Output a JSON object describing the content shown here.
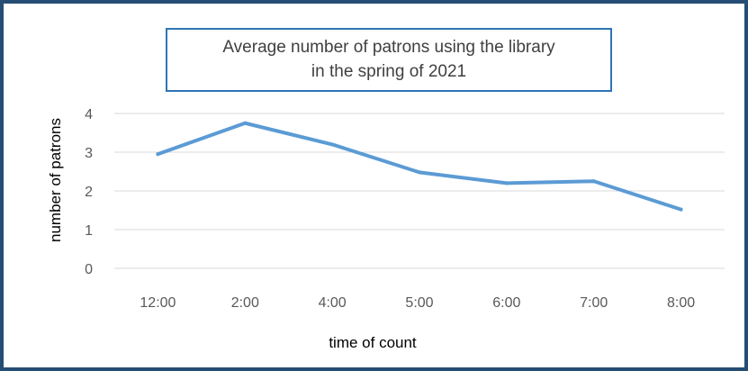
{
  "chart_data": {
    "type": "line",
    "title": [
      "Average number of patrons using the library",
      "in the spring of 2021"
    ],
    "xlabel": "time of count",
    "ylabel": "number of patrons",
    "categories": [
      "12:00",
      "2:00",
      "4:00",
      "5:00",
      "6:00",
      "7:00",
      "8:00"
    ],
    "series": [
      {
        "values": [
          2.95,
          3.75,
          3.2,
          2.48,
          2.2,
          2.25,
          1.52
        ],
        "color": "#5b9bd5"
      }
    ],
    "ylim": [
      0,
      4
    ],
    "yticks": [
      0,
      1,
      2,
      3,
      4
    ],
    "grid": true,
    "legend": "none"
  }
}
